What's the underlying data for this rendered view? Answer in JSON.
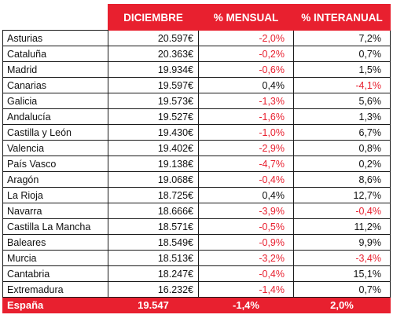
{
  "header": {
    "col1": "",
    "col2": "DICIEMBRE",
    "col3": "% MENSUAL",
    "col4": "% INTERANUAL"
  },
  "rows": [
    {
      "region": "Asturias",
      "diciembre": "20.597€",
      "mensual": "-2,0%",
      "interanual": "7,2%",
      "mensual_neg": true,
      "interanual_neg": false
    },
    {
      "region": "Cataluña",
      "diciembre": "20.363€",
      "mensual": "-0,2%",
      "interanual": "0,7%",
      "mensual_neg": true,
      "interanual_neg": false
    },
    {
      "region": "Madrid",
      "diciembre": "19.934€",
      "mensual": "-0,6%",
      "interanual": "1,5%",
      "mensual_neg": true,
      "interanual_neg": false
    },
    {
      "region": "Canarias",
      "diciembre": "19.597€",
      "mensual": "0,4%",
      "interanual": "-4,1%",
      "mensual_neg": false,
      "interanual_neg": true
    },
    {
      "region": "Galicia",
      "diciembre": "19.573€",
      "mensual": "-1,3%",
      "interanual": "5,6%",
      "mensual_neg": true,
      "interanual_neg": false
    },
    {
      "region": "Andalucía",
      "diciembre": "19.527€",
      "mensual": "-1,6%",
      "interanual": "1,3%",
      "mensual_neg": true,
      "interanual_neg": false
    },
    {
      "region": "Castilla y León",
      "diciembre": "19.430€",
      "mensual": "-1,0%",
      "interanual": "6,7%",
      "mensual_neg": true,
      "interanual_neg": false
    },
    {
      "region": "Valencia",
      "diciembre": "19.402€",
      "mensual": "-2,9%",
      "interanual": "0,8%",
      "mensual_neg": true,
      "interanual_neg": false
    },
    {
      "region": "País Vasco",
      "diciembre": "19.138€",
      "mensual": "-4,7%",
      "interanual": "0,2%",
      "mensual_neg": true,
      "interanual_neg": false
    },
    {
      "region": "Aragón",
      "diciembre": "19.068€",
      "mensual": "-0,4%",
      "interanual": "8,6%",
      "mensual_neg": true,
      "interanual_neg": false
    },
    {
      "region": "La Rioja",
      "diciembre": "18.725€",
      "mensual": "0,4%",
      "interanual": "12,7%",
      "mensual_neg": false,
      "interanual_neg": false
    },
    {
      "region": "Navarra",
      "diciembre": "18.666€",
      "mensual": "-3,9%",
      "interanual": "-0,4%",
      "mensual_neg": true,
      "interanual_neg": true
    },
    {
      "region": "Castilla La Mancha",
      "diciembre": "18.571€",
      "mensual": "-0,5%",
      "interanual": "11,2%",
      "mensual_neg": true,
      "interanual_neg": false
    },
    {
      "region": "Baleares",
      "diciembre": "18.549€",
      "mensual": "-0,9%",
      "interanual": "9,9%",
      "mensual_neg": true,
      "interanual_neg": false
    },
    {
      "region": "Murcia",
      "diciembre": "18.513€",
      "mensual": "-3,2%",
      "interanual": "-3,4%",
      "mensual_neg": true,
      "interanual_neg": true
    },
    {
      "region": "Cantabria",
      "diciembre": "18.247€",
      "mensual": "-0,4%",
      "interanual": "15,1%",
      "mensual_neg": true,
      "interanual_neg": false
    },
    {
      "region": "Extremadura",
      "diciembre": "16.232€",
      "mensual": "-1,4%",
      "interanual": "0,7%",
      "mensual_neg": true,
      "interanual_neg": false
    }
  ],
  "total": {
    "region": "España",
    "diciembre": "19.547",
    "mensual": "-1,4%",
    "interanual": "2,0%"
  },
  "colors": {
    "accent": "#e8202f",
    "text": "#111111",
    "negative": "#e8202f"
  }
}
